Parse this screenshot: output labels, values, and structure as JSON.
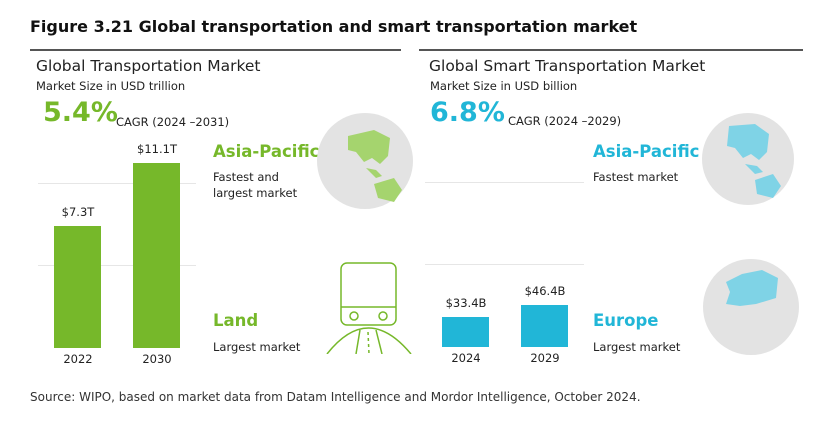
{
  "title": "Figure 3.21 Global transportation and smart transportation market",
  "source": "Source: WIPO, based on market data from Datam Intelligence and Mordor Intelligence, October 2024.",
  "colors": {
    "green": "#76b82a",
    "blue": "#21b6d7",
    "globe": "#e3e3e3"
  },
  "chart_data": [
    {
      "type": "bar",
      "title": "Global Transportation Market",
      "subtitle": "Market Size in USD trillion",
      "categories": [
        "2022",
        "2030"
      ],
      "values": [
        7.3,
        11.1
      ],
      "data_labels": [
        "$7.3T",
        "$11.1T"
      ],
      "cagr": "5.4%",
      "cagr_label": "CAGR (2024 –2031)",
      "color": "#76b82a",
      "grid": true,
      "highlights": [
        {
          "region": "Asia-Pacific",
          "desc_lines": [
            "Fastest  and",
            "largest market"
          ],
          "icon": "globe-asia-pacific-icon"
        },
        {
          "region": "Land",
          "desc_lines": [
            "Largest market"
          ],
          "icon": "bus-road-icon"
        }
      ]
    },
    {
      "type": "bar",
      "title": "Global Smart Transportation Market",
      "subtitle": "Market Size in USD billion",
      "categories": [
        "2024",
        "2029"
      ],
      "values": [
        33.4,
        46.4
      ],
      "data_labels": [
        "$33.4B",
        "$46.4B"
      ],
      "cagr": "6.8%",
      "cagr_label": "CAGR (2024 –2029)",
      "color": "#21b6d7",
      "grid": true,
      "highlights": [
        {
          "region": "Asia-Pacific",
          "desc_lines": [
            "Fastest market"
          ],
          "icon": "globe-asia-pacific-icon"
        },
        {
          "region": "Europe",
          "desc_lines": [
            "Largest market"
          ],
          "icon": "globe-europe-icon"
        }
      ]
    }
  ]
}
